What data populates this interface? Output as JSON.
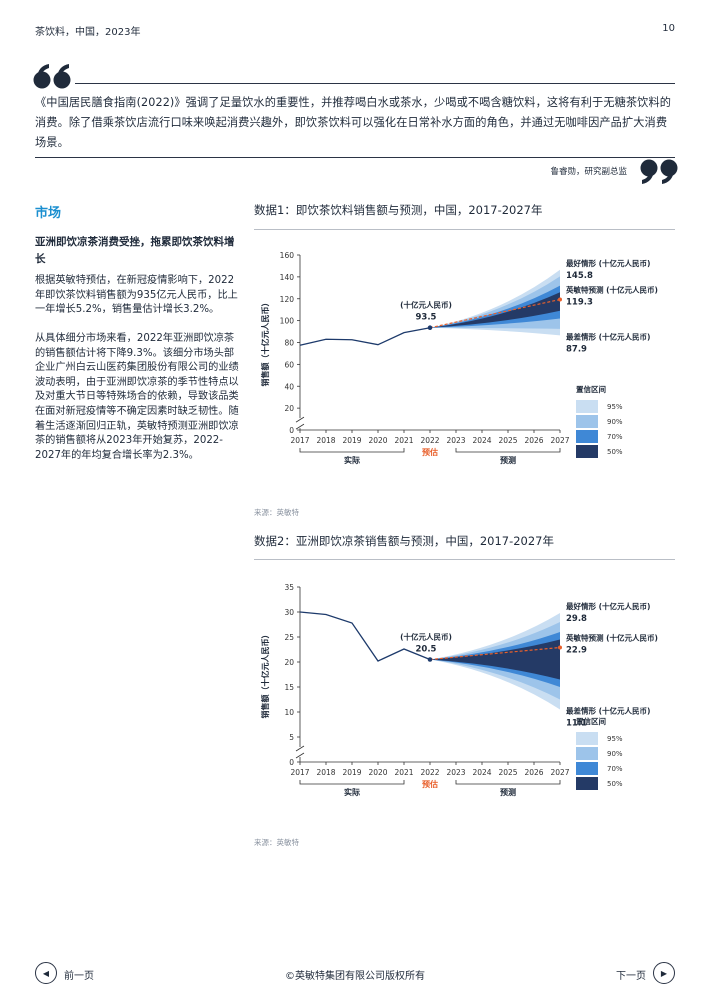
{
  "header": {
    "left": "茶饮料，中国，2023年",
    "page_number": "10"
  },
  "quote": {
    "text": "《中国居民膳食指南(2022)》强调了足量饮水的重要性，并推荐喝白水或茶水，少喝或不喝含糖饮料，这将有利于无糖茶饮料的消费。除了借乘茶饮店流行口味来唤起消费兴趣外，即饮茶饮料可以强化在日常补水方面的角色，并通过无咖啡因产品扩大消费场景。",
    "author": "鲁睿勋，研究副总监"
  },
  "section": {
    "title": "市场",
    "subtitle": "亚洲即饮凉茶消费受挫，拖累即饮茶饮料增长",
    "paragraphs": [
      "根据英敏特预估，在新冠疫情影响下，2022年即饮茶饮料销售额为935亿元人民币，比上一年增长5.2%，销售量估计增长3.2%。",
      "从具体细分市场来看，2022年亚洲即饮凉茶的销售额估计将下降9.3%。该细分市场头部企业广州白云山医药集团股份有限公司的业绩波动表明，由于亚洲即饮凉茶的季节性特点以及对重大节日等特殊场合的依赖，导致该品类在面对新冠疫情等不确定因素时缺乏韧性。随着生活逐渐回归正轨，英敏特预测亚洲即饮凉茶的销售额将从2023年开始复苏，2022-2027年的年均复合增长率为2.3%。"
    ]
  },
  "colors": {
    "accent": "#1b8fd0",
    "actual_line": "#1d3a6b",
    "forecast_dashed": "#e8602c",
    "ci95": "#c9def2",
    "ci90": "#9dc4ea",
    "ci70": "#3f88d6",
    "ci50": "#243a66"
  },
  "chart_data": [
    {
      "type": "line",
      "figure_title": "数据1：即饮茶饮料销售额与预测，中国，2017-2027年",
      "ylabel": "销售额（十亿元人民币）",
      "ylim": [
        0,
        160
      ],
      "yticks": [
        0,
        20,
        40,
        60,
        80,
        100,
        120,
        140,
        160
      ],
      "y_axis_break": true,
      "x": [
        "2017",
        "2018",
        "2019",
        "2020",
        "2021",
        "2022",
        "2023",
        "2024",
        "2025",
        "2026",
        "2027"
      ],
      "actual": [
        77.5,
        83.0,
        82.5,
        78.0,
        89.0,
        93.5
      ],
      "forecast_start_index": 5,
      "forecast_central_2027": 119.3,
      "ci_bands_2027": {
        "95": [
          86.5,
          146.5
        ],
        "90": [
          92.5,
          140.5
        ],
        "70": [
          102.0,
          132.0
        ],
        "50": [
          109.0,
          126.0
        ]
      },
      "annotation": {
        "label": "(十亿元人民币)",
        "value": "93.5"
      },
      "right_labels": [
        {
          "title": "最好情形 (十亿元人民币)",
          "value": "145.8"
        },
        {
          "title": "英敏特预测 (十亿元人民币)",
          "value": "119.3"
        },
        {
          "title": "最差情形 (十亿元人民币)",
          "value": "87.9"
        }
      ],
      "legend_title": "置信区间",
      "legend": [
        "95%",
        "90%",
        "70%",
        "50%"
      ],
      "groups": {
        "actual": "实际",
        "estimate": "预估",
        "forecast": "预测"
      },
      "source": "来源：英敏特"
    },
    {
      "type": "line",
      "figure_title": "数据2：亚洲即饮凉茶销售额与预测，中国，2017-2027年",
      "ylabel": "销售额（十亿元人民币）",
      "ylim": [
        0,
        35
      ],
      "yticks": [
        0,
        5,
        10,
        15,
        20,
        25,
        30,
        35
      ],
      "y_axis_break": true,
      "x": [
        "2017",
        "2018",
        "2019",
        "2020",
        "2021",
        "2022",
        "2023",
        "2024",
        "2025",
        "2026",
        "2027"
      ],
      "actual": [
        30.0,
        29.5,
        27.8,
        20.2,
        22.6,
        20.5
      ],
      "forecast_start_index": 5,
      "forecast_central_2027": 22.9,
      "ci_bands_2027": {
        "95": [
          10.5,
          29.8
        ],
        "90": [
          12.5,
          28.0
        ],
        "70": [
          15.0,
          26.0
        ],
        "50": [
          16.5,
          24.5
        ]
      },
      "annotation": {
        "label": "(十亿元人民币)",
        "value": "20.5"
      },
      "right_labels": [
        {
          "title": "最好情形 (十亿元人民币)",
          "value": "29.8"
        },
        {
          "title": "英敏特预测 (十亿元人民币)",
          "value": "22.9"
        },
        {
          "title": "最差情形 (十亿元人民币)",
          "value": "11.1"
        }
      ],
      "legend_title": "置信区间",
      "legend": [
        "95%",
        "90%",
        "70%",
        "50%"
      ],
      "groups": {
        "actual": "实际",
        "estimate": "预估",
        "forecast": "预测"
      },
      "source": "来源：英敏特"
    }
  ],
  "footer": {
    "prev": "前一页",
    "next": "下一页",
    "copyright": "©英敏特集团有限公司版权所有"
  }
}
